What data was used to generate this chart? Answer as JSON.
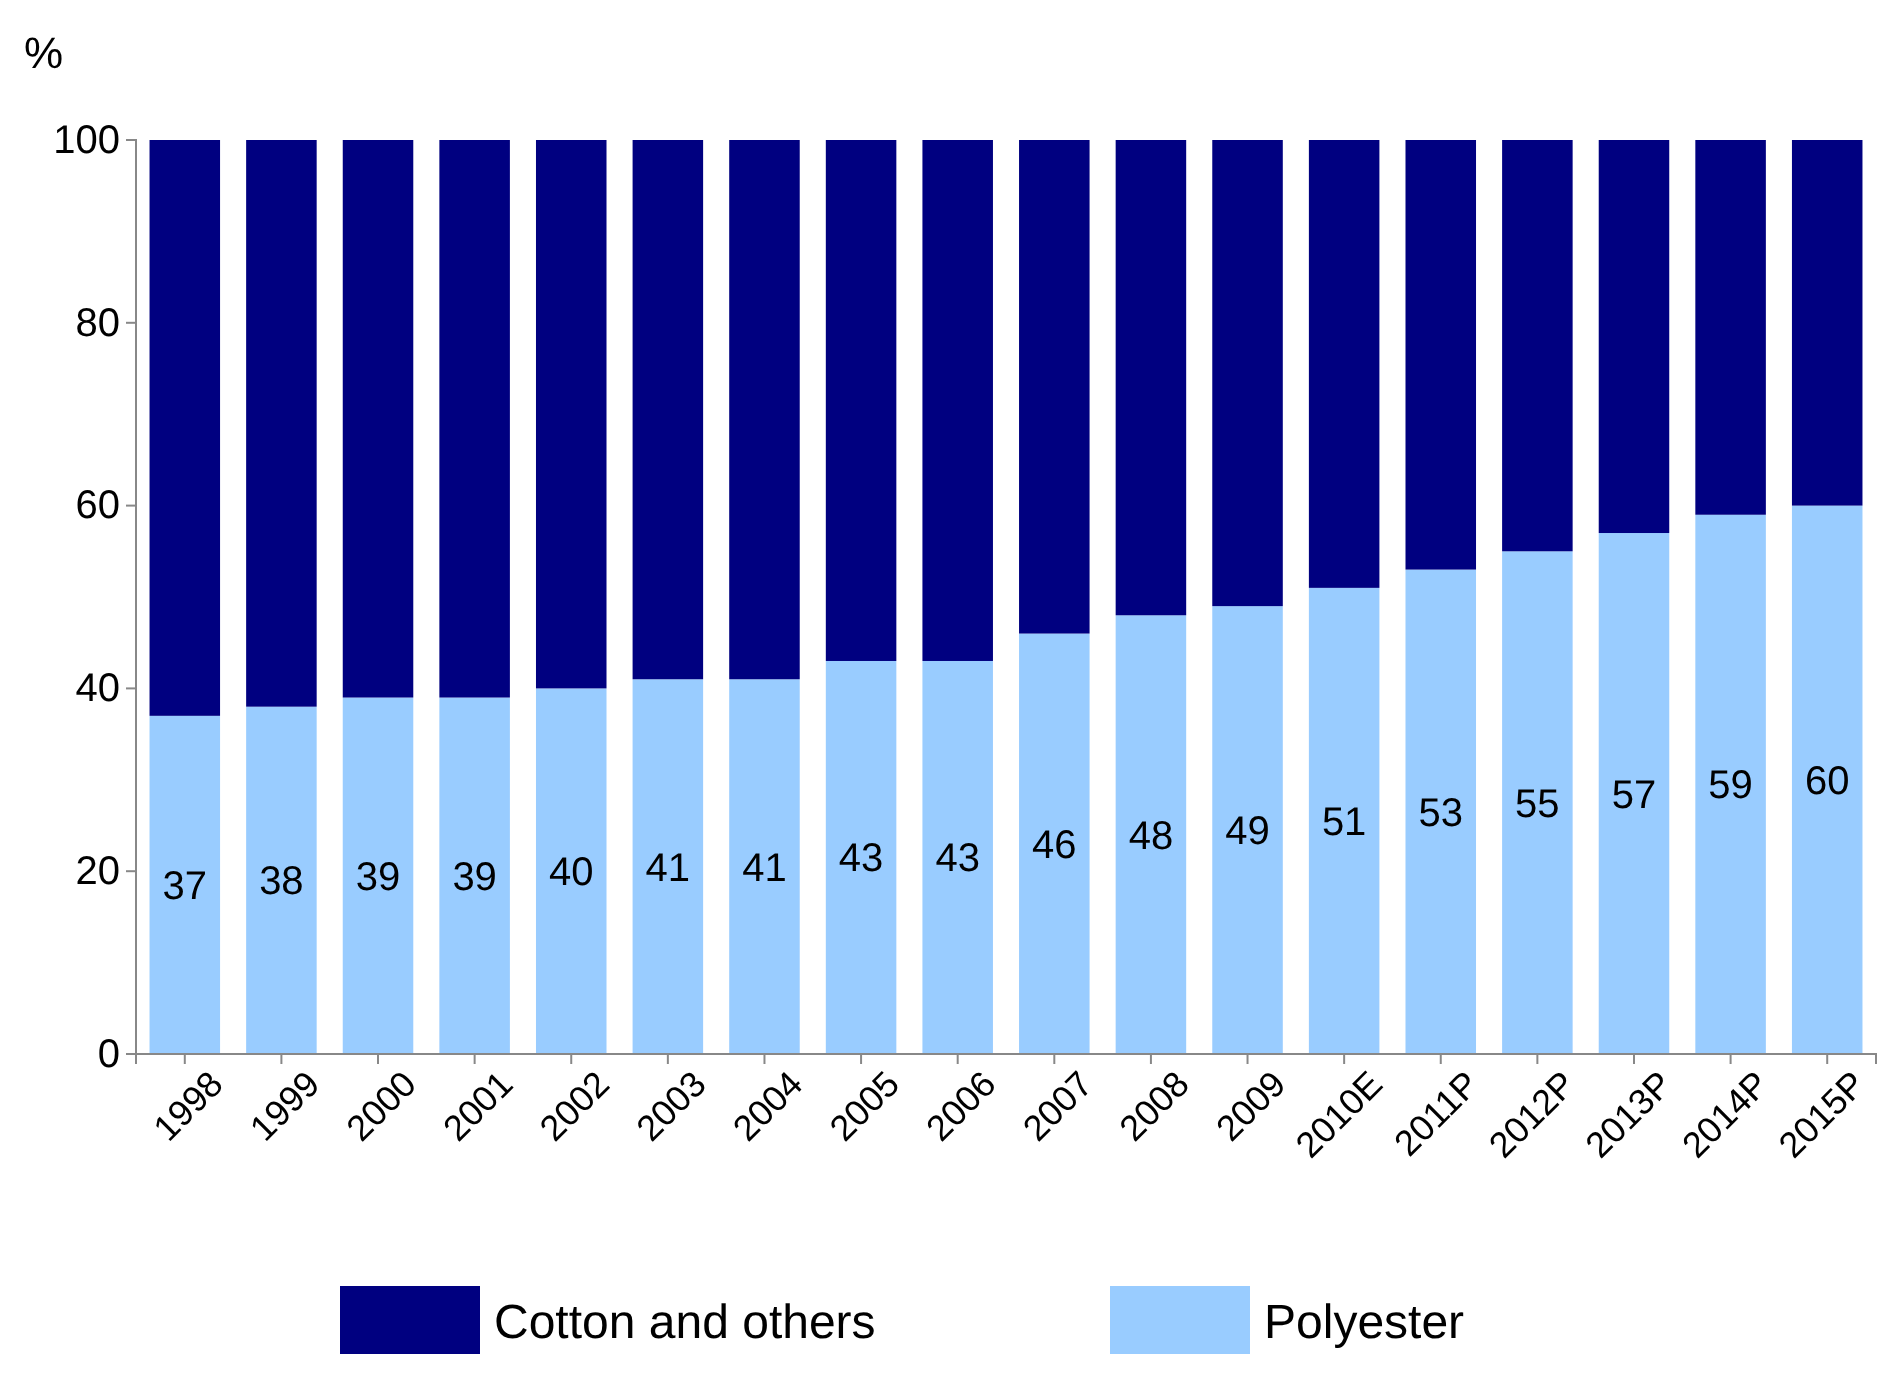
{
  "chart_data": {
    "type": "bar",
    "stacked": true,
    "ylabel": "%",
    "categories": [
      "1998",
      "1999",
      "2000",
      "2001",
      "2002",
      "2003",
      "2004",
      "2005",
      "2006",
      "2007",
      "2008",
      "2009",
      "2010E",
      "2011P",
      "2012P",
      "2013P",
      "2014P",
      "2015P"
    ],
    "series": [
      {
        "name": "Polyester",
        "color": "#99ccff",
        "values": [
          37,
          38,
          39,
          39,
          40,
          41,
          41,
          43,
          43,
          46,
          48,
          49,
          51,
          53,
          55,
          57,
          59,
          60
        ],
        "value_labels": [
          "37",
          "38",
          "39",
          "39",
          "40",
          "41",
          "41",
          "43",
          "43",
          "46",
          "48",
          "49",
          "51",
          "53",
          "55",
          "57",
          "59",
          "60"
        ]
      },
      {
        "name": "Cotton and others",
        "color": "#000080",
        "values": [
          63,
          62,
          61,
          61,
          60,
          59,
          59,
          57,
          57,
          54,
          52,
          51,
          49,
          47,
          45,
          43,
          41,
          40
        ]
      }
    ],
    "ylim": [
      0,
      100
    ],
    "yticks": [
      0,
      20,
      40,
      60,
      80,
      100
    ],
    "grid": false,
    "legend": "bottom"
  }
}
